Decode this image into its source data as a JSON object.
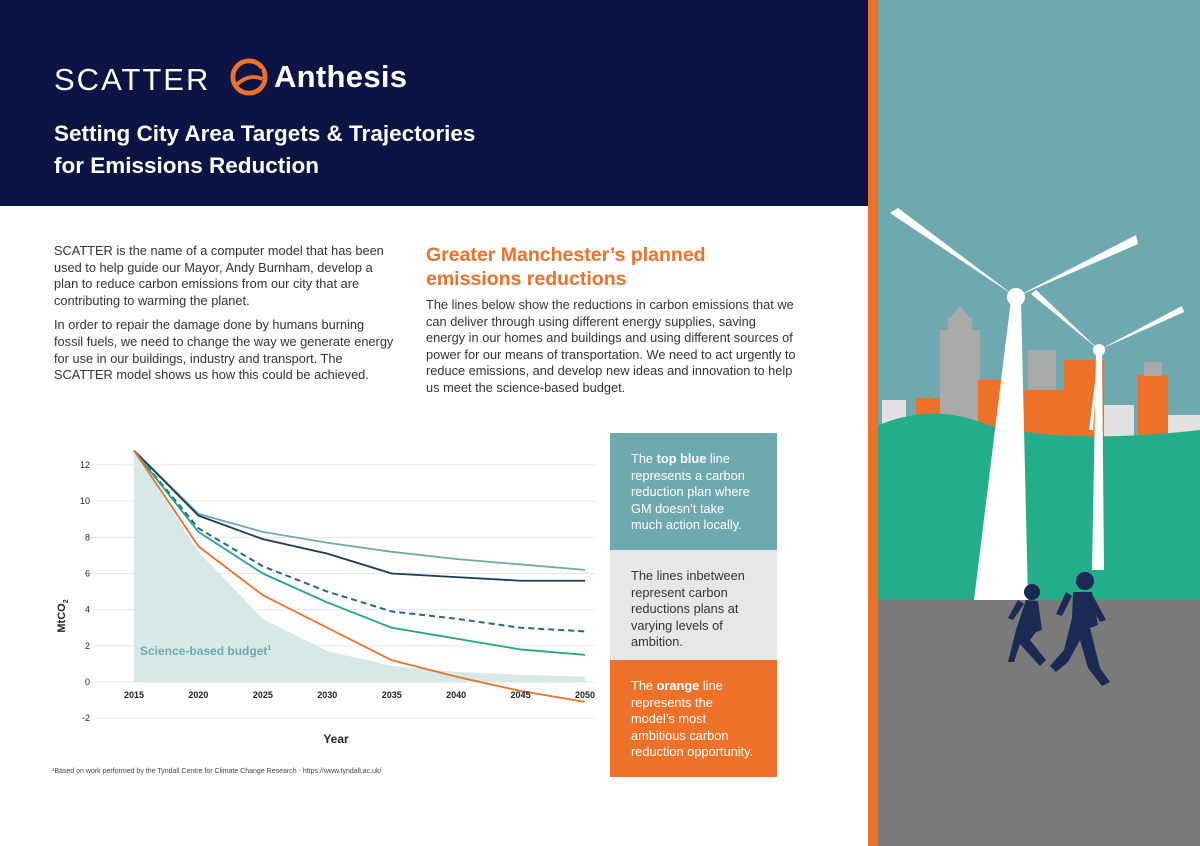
{
  "header": {
    "logo_scatter": "SCATTER",
    "logo_anthesis": "Anthesis",
    "title_line1": "Setting City Area Targets & Trajectories",
    "title_line2": "for Emissions Reduction"
  },
  "intro": {
    "p1": "SCATTER is the name of a computer model that has been used to help guide our Mayor, Andy Burnham, develop a plan to reduce carbon emissions from our city that are contributing to warming the planet.",
    "p2": "In order to repair the damage done by humans burning fossil fuels, we need to change the way we generate energy for use in our buildings, industry and transport. The SCATTER model shows us how this could be achieved."
  },
  "section": {
    "title": "Greater Manchester’s planned emissions reductions",
    "body": "The lines below show the reductions in carbon emissions that we can deliver through using different energy supplies, saving energy in our homes and buildings and using different sources of power for our means of transportation. We need to act urgently to reduce emissions, and develop new ideas and innovation to help us meet the science-based budget."
  },
  "chart_data": {
    "type": "line",
    "xlabel": "Year",
    "ylabel": "MtCO2",
    "x_ticks": [
      "2015",
      "2020",
      "2025",
      "2030",
      "2035",
      "2040",
      "2045",
      "2050"
    ],
    "y_ticks": [
      "12",
      "10",
      "8",
      "6",
      "4",
      "2",
      "0",
      "-2"
    ],
    "ylim": [
      -2,
      12
    ],
    "xlim": [
      2015,
      2050
    ],
    "grid": true,
    "annotation": "Science-based budget",
    "annotation_sup": "1",
    "budget_area": {
      "x": [
        2015,
        2020,
        2025,
        2030,
        2035,
        2040,
        2045,
        2050
      ],
      "y": [
        12.8,
        7.2,
        3.5,
        1.7,
        0.9,
        0.55,
        0.4,
        0.3
      ],
      "color": "#d6e8e8"
    },
    "series": [
      {
        "x": [
          2015,
          2020,
          2025,
          2030,
          2035,
          2040,
          2045,
          2050
        ],
        "y": [
          12.8,
          9.3,
          8.3,
          7.7,
          7.2,
          6.8,
          6.5,
          6.2
        ],
        "color": "#6fa9b0",
        "dashed": false
      },
      {
        "x": [
          2015,
          2020,
          2025,
          2030,
          2035,
          2040,
          2045,
          2050
        ],
        "y": [
          12.8,
          9.2,
          7.9,
          7.1,
          6.0,
          5.8,
          5.6,
          5.6
        ],
        "color": "#1b3a5c",
        "dashed": false
      },
      {
        "x": [
          2015,
          2020,
          2025,
          2030,
          2035,
          2040,
          2045,
          2050
        ],
        "y": [
          12.8,
          8.5,
          6.4,
          5.0,
          3.9,
          3.5,
          3.0,
          2.8
        ],
        "color": "#2a6496",
        "dashed": true
      },
      {
        "x": [
          2015,
          2020,
          2025,
          2030,
          2035,
          2040,
          2045,
          2050
        ],
        "y": [
          12.8,
          8.3,
          6.0,
          4.4,
          3.0,
          2.4,
          1.8,
          1.5
        ],
        "color": "#23a487",
        "dashed": false
      },
      {
        "x": [
          2015,
          2020,
          2025,
          2030,
          2035,
          2040,
          2045,
          2050
        ],
        "y": [
          12.8,
          7.5,
          4.8,
          3.0,
          1.2,
          0.3,
          -0.5,
          -1.1
        ],
        "color": "#ee7129",
        "dashed": false
      }
    ]
  },
  "footnote": "¹Based on work performed by the Tyndall Centre for Climate Change Research - https://www.tyndall.ac.uk/",
  "info": {
    "top_pre": "The ",
    "top_bold": "top blue",
    "top_post": " line represents a carbon reduction plan where GM doesn’t take much action locally.",
    "mid": "The lines inbetween represent carbon reductions plans at varying levels of ambition.",
    "bot_pre": "The ",
    "bot_bold": "orange",
    "bot_post": " line represents the model’s most ambitious carbon reduction opportunity."
  },
  "colors": {
    "navy": "#0b1444",
    "orange": "#ee7129",
    "teal_box": "#6fa9b0",
    "sky": "#6fa9b0",
    "hill": "#23ad8a",
    "ground": "#7a7a7a"
  },
  "icons": {
    "anthesis_logo": "anthesis-logo-icon",
    "wind_turbine": "wind-turbine-icon",
    "runner": "runner-icon"
  }
}
